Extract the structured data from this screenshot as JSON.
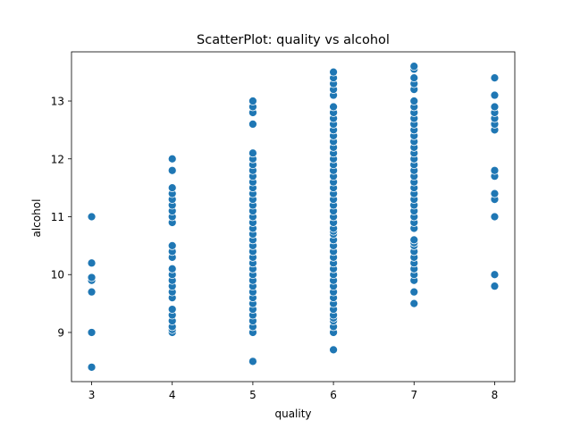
{
  "chart_data": {
    "type": "scatter",
    "title": "ScatterPlot: quality vs alcohol",
    "xlabel": "quality",
    "ylabel": "alcohol",
    "xlim": [
      2.75,
      8.25
    ],
    "ylim": [
      8.15,
      13.85
    ],
    "xticks": [
      3,
      4,
      5,
      6,
      7,
      8
    ],
    "yticks": [
      9,
      10,
      11,
      12,
      13
    ],
    "grid": false,
    "legend": "none",
    "marker_color": "#1f77b4",
    "marker_edge_color": "#ffffff",
    "points_by_quality": {
      "3": [
        8.4,
        9.0,
        9.7,
        9.9,
        9.95,
        10.2,
        11.0
      ],
      "4": [
        9.0,
        9.05,
        9.1,
        9.2,
        9.3,
        9.4,
        9.6,
        9.7,
        9.8,
        9.9,
        10.0,
        10.1,
        10.3,
        10.4,
        10.5,
        10.9,
        11.0,
        11.1,
        11.2,
        11.3,
        11.4,
        11.5,
        11.8,
        12.0
      ],
      "5": [
        8.5,
        9.0,
        9.1,
        9.2,
        9.3,
        9.4,
        9.5,
        9.6,
        9.7,
        9.8,
        9.9,
        10.0,
        10.1,
        10.2,
        10.3,
        10.4,
        10.5,
        10.6,
        10.7,
        10.8,
        10.9,
        11.0,
        11.1,
        11.2,
        11.3,
        11.4,
        11.5,
        11.6,
        11.7,
        11.8,
        11.9,
        12.0,
        12.1,
        12.6,
        12.8,
        12.9,
        13.0
      ],
      "6": [
        8.7,
        9.0,
        9.1,
        9.2,
        9.25,
        9.3,
        9.4,
        9.5,
        9.6,
        9.7,
        9.8,
        9.9,
        10.0,
        10.1,
        10.2,
        10.3,
        10.4,
        10.5,
        10.6,
        10.7,
        10.75,
        10.8,
        10.9,
        11.0,
        11.1,
        11.2,
        11.3,
        11.4,
        11.5,
        11.6,
        11.7,
        11.8,
        11.9,
        12.0,
        12.1,
        12.2,
        12.3,
        12.4,
        12.5,
        12.6,
        12.7,
        12.8,
        12.9,
        13.1,
        13.2,
        13.3,
        13.4,
        13.5
      ],
      "7": [
        9.5,
        9.7,
        9.9,
        10.0,
        10.1,
        10.2,
        10.3,
        10.4,
        10.5,
        10.55,
        10.6,
        10.8,
        10.9,
        11.0,
        11.1,
        11.2,
        11.3,
        11.4,
        11.5,
        11.6,
        11.7,
        11.8,
        11.9,
        12.0,
        12.1,
        12.2,
        12.3,
        12.4,
        12.5,
        12.6,
        12.7,
        12.8,
        12.9,
        13.0,
        13.2,
        13.3,
        13.4,
        13.55,
        13.6
      ],
      "8": [
        9.8,
        10.0,
        11.0,
        11.3,
        11.4,
        11.7,
        11.8,
        12.5,
        12.6,
        12.7,
        12.8,
        12.9,
        13.1,
        13.4
      ]
    }
  }
}
